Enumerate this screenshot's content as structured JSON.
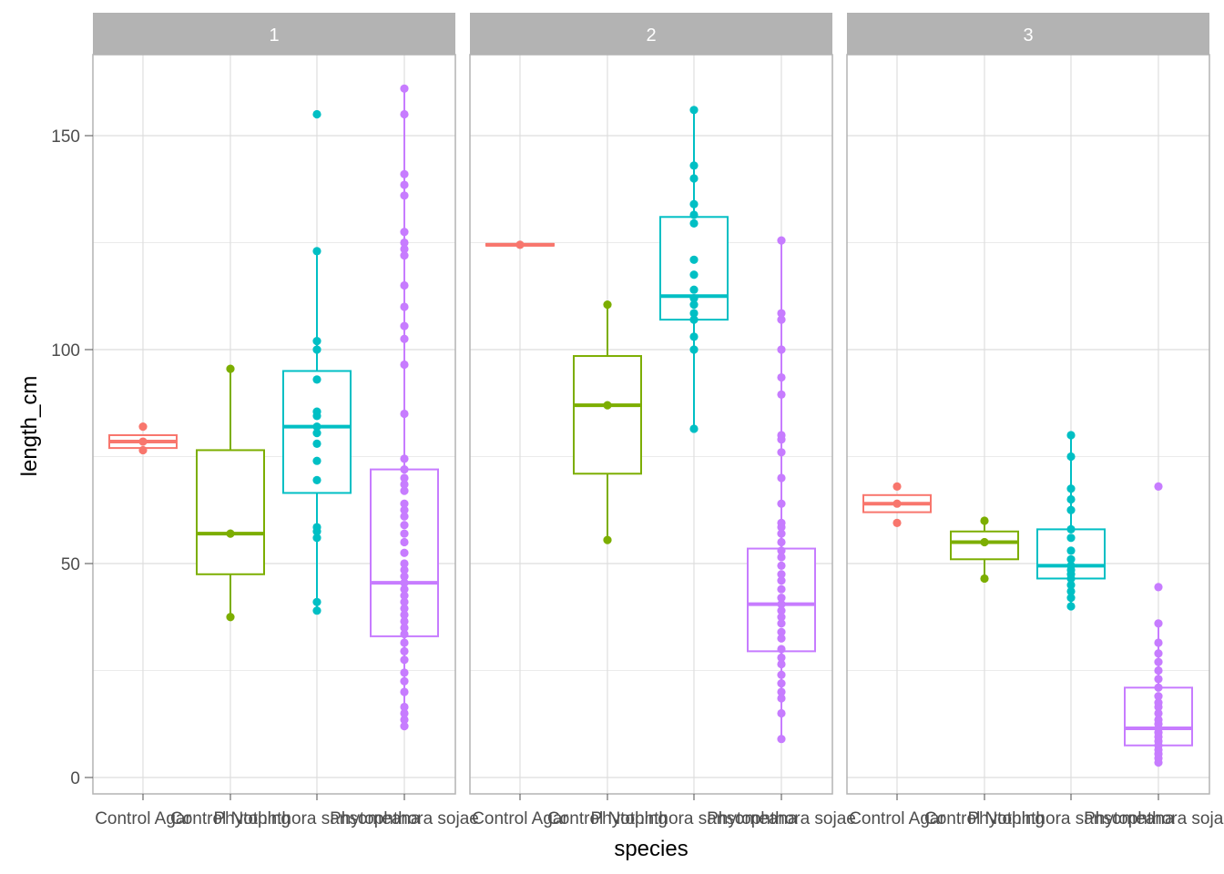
{
  "chart_data": {
    "type": "box",
    "xlabel": "species",
    "ylabel": "length_cm",
    "ylim": [
      -4,
      168
    ],
    "y_ticks": [
      0,
      50,
      100,
      150
    ],
    "categories": [
      "Control Agar",
      "Control Nothing",
      "Phytophthora sansomeana",
      "Phytophthora sojae"
    ],
    "colors": {
      "Control Agar": "#F8766D",
      "Control Nothing": "#7CAE00",
      "Phytophthora sansomeana": "#00BFC4",
      "Phytophthora sojae": "#C77CFF"
    },
    "panels": [
      {
        "label": "1",
        "groups": [
          {
            "species": "Control Agar",
            "q1": 77,
            "median": 78.5,
            "q3": 80,
            "whisker_low": 77,
            "whisker_high": 80,
            "points": [
              76.5,
              78.5,
              82
            ]
          },
          {
            "species": "Control Nothing",
            "q1": 47.5,
            "median": 57,
            "q3": 76.5,
            "whisker_low": 37.5,
            "whisker_high": 95.5,
            "points": [
              37.5,
              57,
              95.5
            ]
          },
          {
            "species": "Phytophthora sansomeana",
            "q1": 66.5,
            "median": 82,
            "q3": 95,
            "whisker_low": 39,
            "whisker_high": 123,
            "points": [
              39,
              41,
              56,
              57.5,
              58.5,
              69.5,
              74,
              78,
              80.5,
              82,
              84.5,
              85.5,
              93,
              100,
              102,
              123,
              155
            ]
          },
          {
            "species": "Phytophthora sojae",
            "q1": 33,
            "median": 45.5,
            "q3": 72,
            "whisker_low": 12,
            "whisker_high": 161,
            "points": [
              12,
              13.5,
              15,
              16.5,
              20,
              22.5,
              24.5,
              27.5,
              29.5,
              31.5,
              33.5,
              35,
              36.5,
              38,
              39.5,
              41,
              42.5,
              44,
              45.5,
              47,
              48.5,
              50,
              52.5,
              55,
              57,
              59,
              61,
              62.5,
              64,
              67,
              68.5,
              70,
              72,
              74.5,
              85,
              96.5,
              102.5,
              105.5,
              110,
              115,
              122,
              123.5,
              125,
              127.5,
              136,
              138.5,
              141,
              155,
              161
            ]
          }
        ]
      },
      {
        "label": "2",
        "groups": [
          {
            "species": "Control Agar",
            "q1": 124.3,
            "median": 124.5,
            "q3": 124.7,
            "whisker_low": 124.3,
            "whisker_high": 124.7,
            "points": [
              124.5
            ]
          },
          {
            "species": "Control Nothing",
            "q1": 71,
            "median": 87,
            "q3": 98.5,
            "whisker_low": 55.5,
            "whisker_high": 110.5,
            "points": [
              55.5,
              87,
              110.5
            ]
          },
          {
            "species": "Phytophthora sansomeana",
            "q1": 107,
            "median": 112.5,
            "q3": 131,
            "whisker_low": 81.5,
            "whisker_high": 156,
            "points": [
              81.5,
              100,
              103,
              107,
              108.5,
              110.5,
              112,
              114,
              117.5,
              121,
              129.5,
              131.5,
              134,
              140,
              143,
              156
            ]
          },
          {
            "species": "Phytophthora sojae",
            "q1": 29.5,
            "median": 40.5,
            "q3": 53.5,
            "whisker_low": 9,
            "whisker_high": 125.5,
            "points": [
              9,
              15,
              18.5,
              20,
              22,
              24,
              26.5,
              28,
              30,
              32.5,
              34,
              36,
              37.5,
              39,
              40.5,
              42,
              44,
              46,
              47.5,
              49.5,
              51.5,
              53,
              55,
              57,
              58.5,
              59.5,
              64,
              70,
              76,
              79,
              80,
              89.5,
              93.5,
              100,
              107,
              108.5,
              125.5
            ]
          }
        ]
      },
      {
        "label": "3",
        "groups": [
          {
            "species": "Control Agar",
            "q1": 62,
            "median": 64,
            "q3": 66,
            "whisker_low": 62,
            "whisker_high": 66,
            "points": [
              59.5,
              64,
              68
            ]
          },
          {
            "species": "Control Nothing",
            "q1": 51,
            "median": 55,
            "q3": 57.5,
            "whisker_low": 46.5,
            "whisker_high": 60,
            "points": [
              46.5,
              55,
              60
            ]
          },
          {
            "species": "Phytophthora sansomeana",
            "q1": 46.5,
            "median": 49.5,
            "q3": 58,
            "whisker_low": 40,
            "whisker_high": 80,
            "points": [
              40,
              42,
              43.5,
              45,
              46.5,
              47.5,
              48.5,
              49.5,
              51,
              53,
              56,
              58,
              62.5,
              65,
              67.5,
              75,
              80
            ]
          },
          {
            "species": "Phytophthora sojae",
            "q1": 7.5,
            "median": 11.5,
            "q3": 21,
            "whisker_low": 3.5,
            "whisker_high": 36,
            "points": [
              3.5,
              4.5,
              5.5,
              6.5,
              7.5,
              8.5,
              9.5,
              10.5,
              11.5,
              12.5,
              13.5,
              15,
              16.5,
              17.5,
              19,
              21,
              23,
              25,
              27,
              29,
              31.5,
              36,
              44.5,
              68
            ]
          }
        ]
      }
    ]
  }
}
